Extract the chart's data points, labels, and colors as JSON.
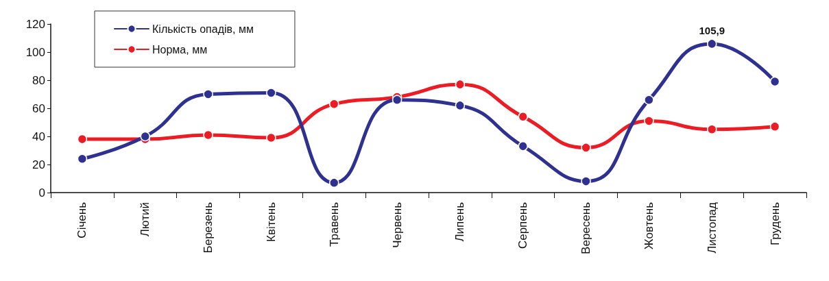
{
  "chart_data": {
    "type": "line",
    "categories": [
      "Січень",
      "Лютий",
      "Березень",
      "Квітень",
      "Травень",
      "Червень",
      "Липень",
      "Серпень",
      "Вересень",
      "Жовтень",
      "Листопад",
      "Грудень"
    ],
    "series": [
      {
        "name": "Кількість опадів, мм",
        "color": "#2e3192",
        "values": [
          24,
          40,
          70,
          71,
          7,
          66,
          62,
          33,
          8,
          66,
          105.9,
          79
        ],
        "value_labels": [
          null,
          null,
          null,
          null,
          null,
          null,
          null,
          null,
          null,
          null,
          "105,9",
          null
        ]
      },
      {
        "name": "Норма, мм",
        "color": "#ed1c24",
        "values": [
          38,
          38,
          41,
          39,
          63,
          68,
          77,
          54,
          32,
          51,
          45,
          47
        ]
      }
    ],
    "ylim": [
      0,
      120
    ],
    "yticks": [
      0,
      20,
      40,
      60,
      80,
      100,
      120
    ],
    "grid": false,
    "legend": "top left",
    "marker": "circle",
    "line_style": "solid"
  }
}
